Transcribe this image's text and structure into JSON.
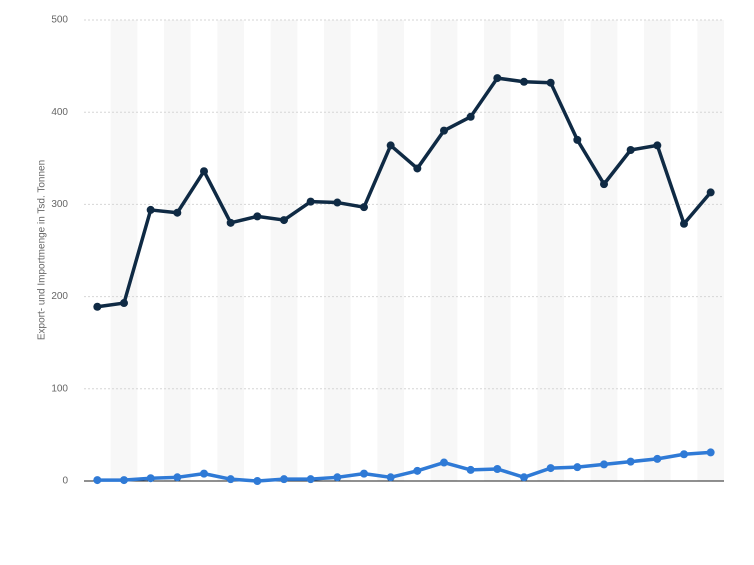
{
  "chart_data": {
    "type": "line",
    "y_label": "Export- und Importmenge in Tsd. Tonnen",
    "categories": [
      null,
      null,
      null,
      null,
      null,
      null,
      null,
      null,
      null,
      null,
      null,
      null,
      null,
      null,
      null,
      null,
      null,
      null,
      null,
      null,
      null,
      null,
      null,
      null
    ],
    "series": [
      {
        "color": "#0f2a44",
        "values": [
          189,
          193,
          294,
          291,
          336,
          280,
          287,
          283,
          303,
          302,
          297,
          364,
          339,
          380,
          395,
          437,
          433,
          432,
          370,
          322,
          359,
          364,
          279,
          313
        ]
      },
      {
        "color": "#2f7ad6",
        "values": [
          1,
          1,
          3,
          4,
          8,
          2,
          0,
          2,
          2,
          4,
          8,
          4,
          11,
          20,
          12,
          13,
          4,
          14,
          15,
          18,
          21,
          24,
          29,
          31
        ]
      }
    ],
    "ylim": [
      0,
      500
    ],
    "yticks": [
      0,
      100,
      200,
      300,
      400,
      500
    ],
    "grid": true
  }
}
